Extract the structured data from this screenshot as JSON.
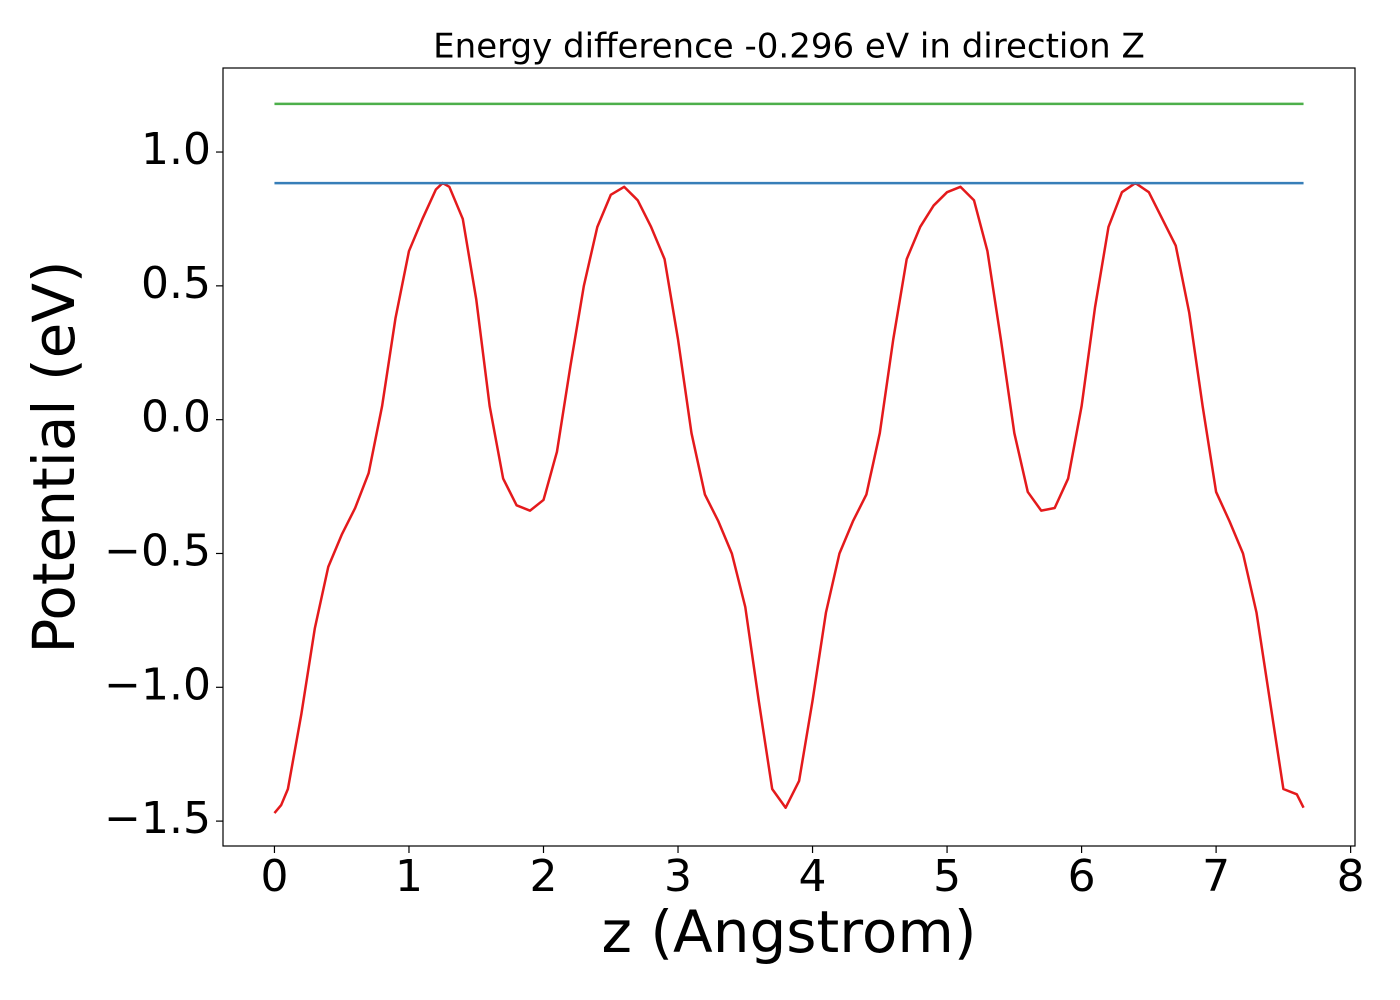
{
  "chart_data": {
    "type": "line",
    "title": "Energy difference -0.296 eV in direction Z",
    "xlabel": "z (Angstrom)",
    "ylabel": "Potential (eV)",
    "xlim": [
      -0.3825,
      8.0325
    ],
    "ylim": [
      -1.593,
      1.314
    ],
    "xticks": [
      0,
      1,
      2,
      3,
      4,
      5,
      6,
      7,
      8
    ],
    "yticks": [
      {
        "value": -1.5,
        "label": "−1.5"
      },
      {
        "value": -1.0,
        "label": "−1.0"
      },
      {
        "value": -0.5,
        "label": "−0.5"
      },
      {
        "value": 0.0,
        "label": "0.0"
      },
      0.5,
      {
        "value": 1.0,
        "label": "1.0"
      }
    ],
    "grid": false,
    "series": [
      {
        "color": "#e41a1c",
        "x": [
          0,
          0.05,
          0.1,
          0.2,
          0.3,
          0.4,
          0.5,
          0.6,
          0.7,
          0.8,
          0.9,
          1.0,
          1.1,
          1.2,
          1.25,
          1.3,
          1.4,
          1.5,
          1.6,
          1.7,
          1.8,
          1.9,
          2.0,
          2.1,
          2.2,
          2.3,
          2.4,
          2.5,
          2.6,
          2.7,
          2.8,
          2.9,
          3.0,
          3.1,
          3.2,
          3.3,
          3.4,
          3.5,
          3.6,
          3.7,
          3.8,
          3.9,
          4.0,
          4.1,
          4.2,
          4.3,
          4.4,
          4.5,
          4.6,
          4.7,
          4.8,
          4.9,
          5.0,
          5.1,
          5.2,
          5.3,
          5.4,
          5.5,
          5.6,
          5.7,
          5.8,
          5.9,
          6.0,
          6.1,
          6.2,
          6.3,
          6.4,
          6.5,
          6.6,
          6.7,
          6.8,
          6.9,
          7.0,
          7.1,
          7.2,
          7.3,
          7.4,
          7.5,
          7.6,
          7.65
        ],
        "values": [
          -1.47,
          -1.44,
          -1.38,
          -1.1,
          -0.78,
          -0.55,
          -0.43,
          -0.33,
          -0.2,
          0.05,
          0.38,
          0.63,
          0.75,
          0.86,
          0.884,
          0.87,
          0.75,
          0.45,
          0.05,
          -0.22,
          -0.32,
          -0.34,
          -0.3,
          -0.12,
          0.2,
          0.5,
          0.72,
          0.84,
          0.87,
          0.82,
          0.72,
          0.6,
          0.3,
          -0.05,
          -0.28,
          -0.38,
          -0.5,
          -0.7,
          -1.05,
          -1.38,
          -1.45,
          -1.35,
          -1.05,
          -0.72,
          -0.5,
          -0.38,
          -0.28,
          -0.05,
          0.3,
          0.6,
          0.72,
          0.8,
          0.85,
          0.87,
          0.82,
          0.63,
          0.3,
          -0.05,
          -0.27,
          -0.34,
          -0.33,
          -0.22,
          0.05,
          0.42,
          0.72,
          0.85,
          0.884,
          0.85,
          0.75,
          0.65,
          0.4,
          0.05,
          -0.27,
          -0.38,
          -0.5,
          -0.72,
          -1.05,
          -1.38,
          -1.4,
          -1.45
        ]
      },
      {
        "color": "#377eb8",
        "x": [
          0,
          7.65
        ],
        "values": [
          0.884,
          0.884
        ]
      },
      {
        "color": "#4daf4a",
        "x": [
          0,
          7.65
        ],
        "values": [
          1.18,
          1.18
        ]
      }
    ]
  }
}
